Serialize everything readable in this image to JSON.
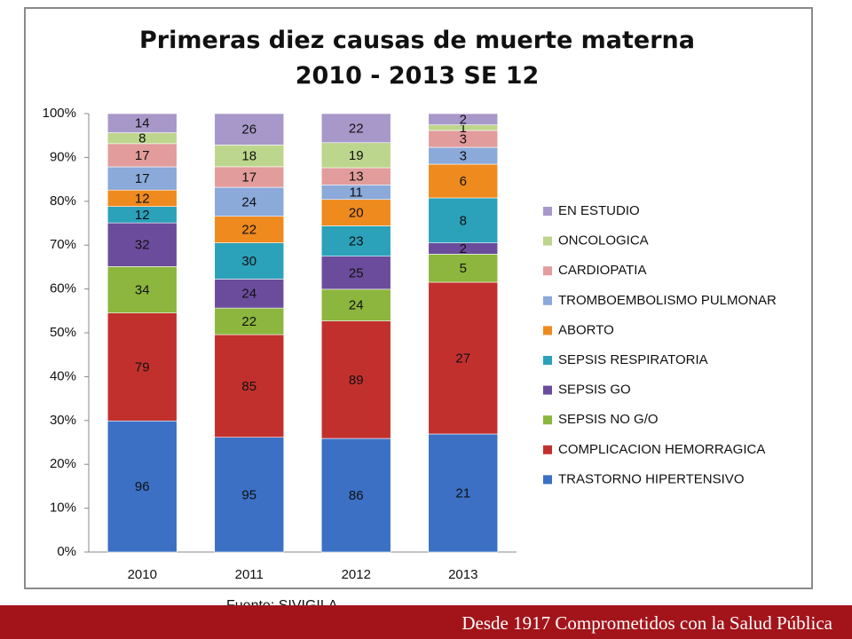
{
  "chart_data": {
    "type": "bar",
    "stacking": "percent",
    "title": "Primeras diez causas de muerte materna 2010 - 2013 SE 12",
    "categories": [
      "2010",
      "2011",
      "2012",
      "2013"
    ],
    "series": [
      {
        "name": "TRASTORNO HIPERTENSIVO",
        "color": "#3b70c4",
        "values": [
          96,
          95,
          86,
          21
        ]
      },
      {
        "name": "COMPLICACION HEMORRAGICA",
        "color": "#c2302e",
        "values": [
          79,
          85,
          89,
          27
        ]
      },
      {
        "name": "SEPSIS NO G/O",
        "color": "#8cb63d",
        "values": [
          34,
          22,
          24,
          5
        ]
      },
      {
        "name": "SEPSIS  GO",
        "color": "#6b4c9c",
        "values": [
          32,
          24,
          25,
          2
        ]
      },
      {
        "name": "SEPSIS RESPIRATORIA",
        "color": "#2ba1ba",
        "values": [
          12,
          30,
          23,
          8
        ]
      },
      {
        "name": "ABORTO",
        "color": "#ef8a1e",
        "values": [
          12,
          22,
          20,
          6
        ]
      },
      {
        "name": "TROMBOEMBOLISMO PULMONAR",
        "color": "#8ba9d9",
        "values": [
          17,
          24,
          11,
          3
        ]
      },
      {
        "name": "CARDIOPATIA",
        "color": "#e29c9b",
        "values": [
          17,
          17,
          13,
          3
        ]
      },
      {
        "name": "ONCOLOGICA",
        "color": "#bdd68d",
        "values": [
          8,
          18,
          19,
          1
        ]
      },
      {
        "name": "EN ESTUDIO",
        "color": "#a898c9",
        "values": [
          14,
          26,
          22,
          2
        ]
      }
    ],
    "ylim": [
      0,
      100
    ],
    "yticks": [
      {
        "value": 0,
        "label": "0%"
      },
      {
        "value": 10,
        "label": "10%"
      },
      {
        "value": 20,
        "label": "20%"
      },
      {
        "value": 30,
        "label": "30%"
      },
      {
        "value": 40,
        "label": "40%"
      },
      {
        "value": 50,
        "label": "50%"
      },
      {
        "value": 60,
        "label": "60%"
      },
      {
        "value": 70,
        "label": "70%"
      },
      {
        "value": 80,
        "label": "80%"
      },
      {
        "value": 90,
        "label": "90%"
      },
      {
        "value": 100,
        "label": "100%"
      }
    ],
    "legend": "right",
    "source": "Fuente: SIVIGILA",
    "footer": "Desde 1917 Comprometidos con la Salud Pública"
  }
}
